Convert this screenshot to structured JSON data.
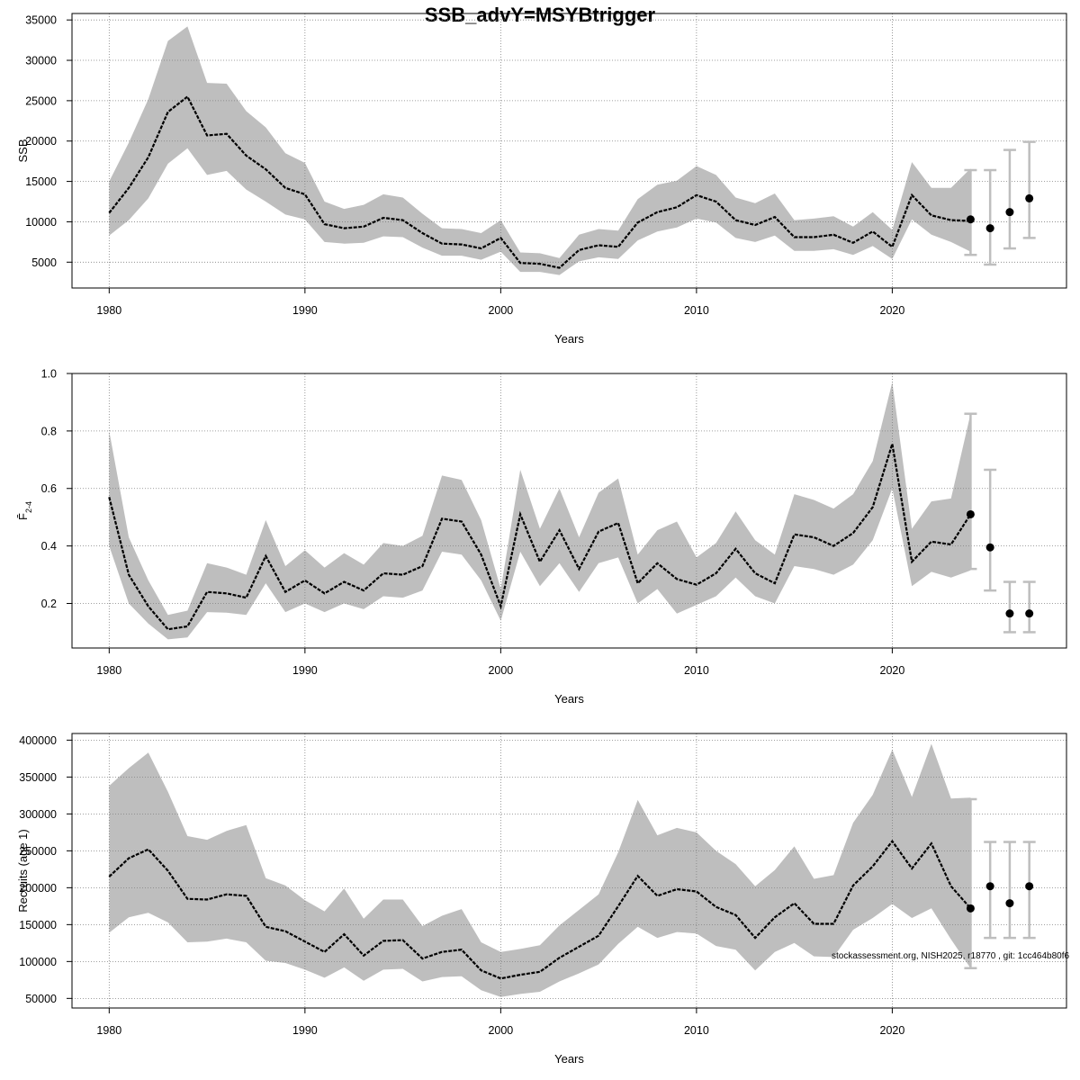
{
  "title": "SSB_advY=MSYBtrigger",
  "footnote": "stockassessment.org, NISH2025, r18770 , git: 1cc464b80f6",
  "colors": {
    "band": "#bebebe",
    "line": "#000000",
    "forecast_bar": "#bebebe",
    "grid": "#808080"
  },
  "chart_data": [
    {
      "type": "line",
      "id": "ssb",
      "ylabel": "SSB",
      "xlabel": "Years",
      "xlim": [
        1978.1,
        2028.9
      ],
      "ylim": [
        1800,
        35800
      ],
      "x_ticks": [
        1980,
        1990,
        2000,
        2010,
        2020
      ],
      "y_ticks": [
        5000,
        10000,
        15000,
        20000,
        25000,
        30000,
        35000
      ],
      "grid": true,
      "years": [
        1980,
        1981,
        1982,
        1983,
        1984,
        1985,
        1986,
        1987,
        1988,
        1989,
        1990,
        1991,
        1992,
        1993,
        1994,
        1995,
        1996,
        1997,
        1998,
        1999,
        2000,
        2001,
        2002,
        2003,
        2004,
        2005,
        2006,
        2007,
        2008,
        2009,
        2010,
        2011,
        2012,
        2013,
        2014,
        2015,
        2016,
        2017,
        2018,
        2019,
        2020,
        2021,
        2022,
        2023,
        2024
      ],
      "estimate": [
        11100,
        14200,
        18000,
        23600,
        25500,
        20700,
        20900,
        18200,
        16500,
        14200,
        13400,
        9700,
        9200,
        9400,
        10500,
        10200,
        8600,
        7300,
        7200,
        6700,
        8000,
        4900,
        4800,
        4300,
        6500,
        7100,
        6900,
        9900,
        11200,
        11800,
        13300,
        12500,
        10200,
        9600,
        10600,
        8100,
        8100,
        8400,
        7400,
        8800,
        6900,
        13300,
        10800,
        10200,
        10100
      ],
      "lower": [
        8300,
        10200,
        12900,
        17200,
        19100,
        15800,
        16300,
        14000,
        12500,
        10900,
        10300,
        7500,
        7300,
        7400,
        8200,
        8100,
        6800,
        5800,
        5800,
        5300,
        6300,
        3800,
        3800,
        3400,
        5100,
        5600,
        5400,
        7700,
        8800,
        9300,
        10400,
        9900,
        8000,
        7500,
        8300,
        6400,
        6400,
        6600,
        5900,
        7000,
        5400,
        10300,
        8400,
        7500,
        6300
      ],
      "upper": [
        15000,
        19800,
        25200,
        32400,
        34200,
        27200,
        27100,
        23700,
        21700,
        18500,
        17300,
        12500,
        11600,
        12100,
        13400,
        13000,
        11000,
        9200,
        9100,
        8600,
        10200,
        6200,
        6100,
        5500,
        8400,
        9100,
        8900,
        12800,
        14600,
        15100,
        16900,
        15800,
        13000,
        12300,
        13500,
        10200,
        10400,
        10700,
        9400,
        11200,
        9000,
        17400,
        14200,
        14200,
        16600
      ],
      "forecast": {
        "years": [
          2024,
          2025,
          2026,
          2027
        ],
        "estimate": [
          10300,
          9200,
          11200,
          12900
        ],
        "lower": [
          5900,
          4700,
          6700,
          8000
        ],
        "upper": [
          16400,
          16400,
          18900,
          19900
        ]
      }
    },
    {
      "type": "line",
      "id": "fbar",
      "ylabel": "F̄",
      "ylabel_sub": "2-4",
      "xlabel": "Years",
      "xlim": [
        1978.1,
        2028.9
      ],
      "ylim": [
        0.045,
        1.0
      ],
      "x_ticks": [
        1980,
        1990,
        2000,
        2010,
        2020
      ],
      "y_ticks": [
        "0.2",
        "0.4",
        "0.6",
        "0.8",
        "1.0"
      ],
      "grid": true,
      "years": [
        1980,
        1981,
        1982,
        1983,
        1984,
        1985,
        1986,
        1987,
        1988,
        1989,
        1990,
        1991,
        1992,
        1993,
        1994,
        1995,
        1996,
        1997,
        1998,
        1999,
        2000,
        2001,
        2002,
        2003,
        2004,
        2005,
        2006,
        2007,
        2008,
        2009,
        2010,
        2011,
        2012,
        2013,
        2014,
        2015,
        2016,
        2017,
        2018,
        2019,
        2020,
        2021,
        2022,
        2023,
        2024
      ],
      "estimate": [
        0.57,
        0.3,
        0.19,
        0.11,
        0.12,
        0.24,
        0.235,
        0.22,
        0.365,
        0.24,
        0.28,
        0.235,
        0.275,
        0.245,
        0.305,
        0.3,
        0.33,
        0.495,
        0.485,
        0.37,
        0.19,
        0.51,
        0.345,
        0.455,
        0.32,
        0.45,
        0.48,
        0.27,
        0.34,
        0.285,
        0.265,
        0.305,
        0.39,
        0.305,
        0.27,
        0.44,
        0.43,
        0.4,
        0.445,
        0.535,
        0.755,
        0.345,
        0.415,
        0.405,
        0.51
      ],
      "lower": [
        0.4,
        0.2,
        0.13,
        0.075,
        0.082,
        0.17,
        0.168,
        0.16,
        0.27,
        0.17,
        0.2,
        0.17,
        0.2,
        0.18,
        0.225,
        0.22,
        0.245,
        0.38,
        0.37,
        0.28,
        0.14,
        0.38,
        0.26,
        0.34,
        0.24,
        0.34,
        0.36,
        0.2,
        0.25,
        0.165,
        0.195,
        0.225,
        0.29,
        0.225,
        0.2,
        0.33,
        0.32,
        0.3,
        0.335,
        0.42,
        0.6,
        0.26,
        0.31,
        0.29,
        0.315
      ],
      "upper": [
        0.8,
        0.43,
        0.28,
        0.16,
        0.175,
        0.34,
        0.325,
        0.3,
        0.49,
        0.33,
        0.385,
        0.325,
        0.375,
        0.335,
        0.41,
        0.4,
        0.435,
        0.645,
        0.63,
        0.49,
        0.25,
        0.665,
        0.46,
        0.6,
        0.43,
        0.585,
        0.635,
        0.37,
        0.455,
        0.485,
        0.36,
        0.41,
        0.52,
        0.42,
        0.37,
        0.58,
        0.56,
        0.53,
        0.58,
        0.695,
        0.97,
        0.46,
        0.555,
        0.565,
        0.86
      ],
      "forecast": {
        "years": [
          2024,
          2025,
          2026,
          2027
        ],
        "estimate": [
          0.51,
          0.395,
          0.165,
          0.165
        ],
        "lower": [
          0.32,
          0.245,
          0.1,
          0.1
        ],
        "upper": [
          0.86,
          0.665,
          0.275,
          0.275
        ]
      }
    },
    {
      "type": "line",
      "id": "recruits",
      "ylabel": "Recruits (age 1)",
      "xlabel": "Years",
      "xlim": [
        1978.1,
        2028.9
      ],
      "ylim": [
        37000,
        409000
      ],
      "x_ticks": [
        1980,
        1990,
        2000,
        2010,
        2020
      ],
      "y_ticks": [
        50000,
        100000,
        150000,
        200000,
        250000,
        300000,
        350000,
        400000
      ],
      "grid": true,
      "years": [
        1980,
        1981,
        1982,
        1983,
        1984,
        1985,
        1986,
        1987,
        1988,
        1989,
        1990,
        1991,
        1992,
        1993,
        1994,
        1995,
        1996,
        1997,
        1998,
        1999,
        2000,
        2001,
        2002,
        2003,
        2004,
        2005,
        2006,
        2007,
        2008,
        2009,
        2010,
        2011,
        2012,
        2013,
        2014,
        2015,
        2016,
        2017,
        2018,
        2019,
        2020,
        2021,
        2022,
        2023,
        2024
      ],
      "estimate": [
        215000,
        240000,
        252000,
        223000,
        185000,
        184000,
        191000,
        189000,
        147000,
        141000,
        127000,
        113000,
        137000,
        108000,
        128000,
        129000,
        104000,
        113000,
        116000,
        88000,
        77000,
        82000,
        86000,
        105000,
        120000,
        135000,
        175000,
        216000,
        189000,
        198000,
        195000,
        174000,
        163000,
        132000,
        160000,
        179000,
        151000,
        151000,
        203000,
        229000,
        263000,
        226000,
        260000,
        202000,
        172000
      ],
      "lower": [
        139000,
        160000,
        166000,
        153000,
        126000,
        127000,
        131000,
        126000,
        101000,
        98000,
        89000,
        78000,
        92000,
        74000,
        89000,
        90000,
        73000,
        79000,
        80000,
        61000,
        52000,
        56000,
        59000,
        73000,
        84000,
        96000,
        124000,
        147000,
        132000,
        140000,
        138000,
        121000,
        116000,
        88000,
        113000,
        125000,
        107000,
        106000,
        143000,
        159000,
        178000,
        159000,
        172000,
        130000,
        91000
      ],
      "upper": [
        338000,
        362000,
        383000,
        330000,
        270000,
        265000,
        277000,
        285000,
        213000,
        203000,
        183000,
        168000,
        199000,
        158000,
        184000,
        184000,
        148000,
        162000,
        171000,
        126000,
        113000,
        117000,
        122000,
        149000,
        170000,
        191000,
        248000,
        319000,
        271000,
        281000,
        275000,
        250000,
        232000,
        202000,
        224000,
        256000,
        212000,
        217000,
        288000,
        326000,
        387000,
        323000,
        395000,
        321000,
        322000
      ],
      "forecast": {
        "years": [
          2024,
          2025,
          2026,
          2027
        ],
        "estimate": [
          172000,
          202000,
          179000,
          202000
        ],
        "lower": [
          91000,
          132000,
          132000,
          132000
        ],
        "upper": [
          320000,
          262000,
          262000,
          262000
        ]
      }
    }
  ]
}
